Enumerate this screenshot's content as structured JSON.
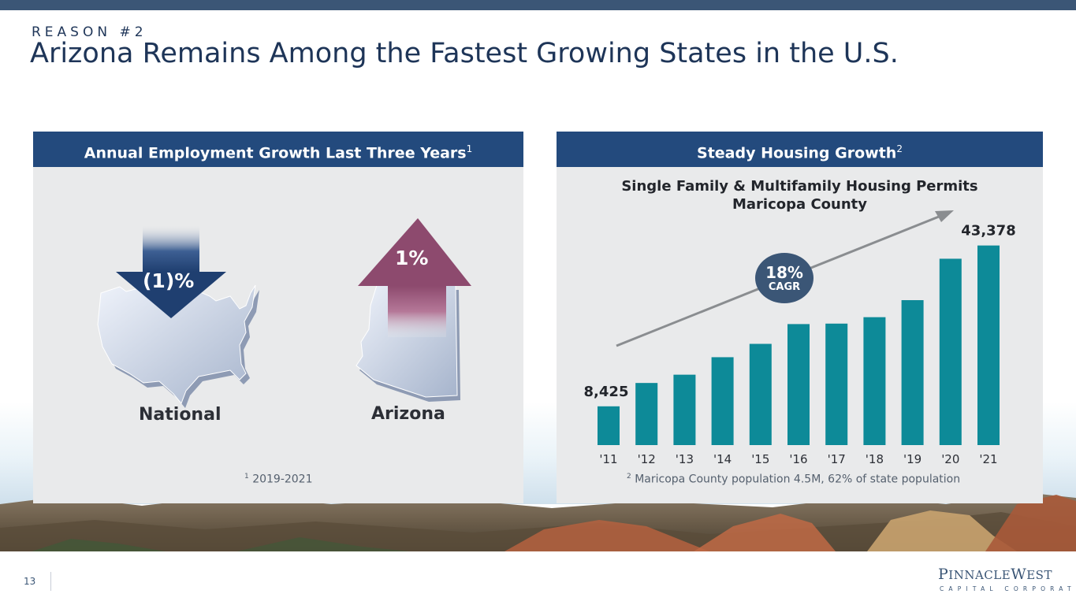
{
  "header": {
    "kicker": "REASON #2",
    "title": "Arizona Remains Among the Fastest Growing States in the U.S."
  },
  "left_panel": {
    "title": "Annual Employment Growth Last Three Years",
    "title_sup": "1",
    "national_value": "(1)%",
    "national_label": "National",
    "arizona_value": "1%",
    "arizona_label": "Arizona",
    "footnote_sup": "1",
    "footnote": "2019-2021"
  },
  "right_panel": {
    "title": "Steady Housing Growth",
    "title_sup": "2",
    "cagr_value": "18%",
    "cagr_label": "CAGR",
    "footnote_sup": "2",
    "footnote": "Maricopa County population 4.5M, 62% of state population"
  },
  "chart_data": {
    "type": "bar",
    "title": "Single Family & Multifamily Housing Permits",
    "subtitle": "Maricopa County",
    "categories": [
      "'11",
      "'12",
      "'13",
      "'14",
      "'15",
      "'16",
      "'17",
      "'18",
      "'19",
      "'20",
      "'21"
    ],
    "values": [
      8425,
      13500,
      15300,
      19100,
      22000,
      26300,
      26400,
      27800,
      31500,
      40500,
      43378
    ],
    "data_labels": [
      {
        "category": "'11",
        "text": "8,425"
      },
      {
        "category": "'21",
        "text": "43,378"
      }
    ],
    "ylim": [
      0,
      44000
    ],
    "grid": false,
    "color": "#0d8a98",
    "trend_color": "#8a8d90"
  },
  "footer": {
    "page_number": "13",
    "logo_main_1": "P",
    "logo_main_2": "INNACLE",
    "logo_main_3": "W",
    "logo_main_4": "EST",
    "logo_sub": "CAPITAL CORPORATION"
  },
  "colors": {
    "navy": "#234a7d",
    "teal_bar": "#0d8a98",
    "down_arrow": "#2c4a7c",
    "up_arrow": "#8d4a6e",
    "cagr_badge": "#3b5676"
  }
}
